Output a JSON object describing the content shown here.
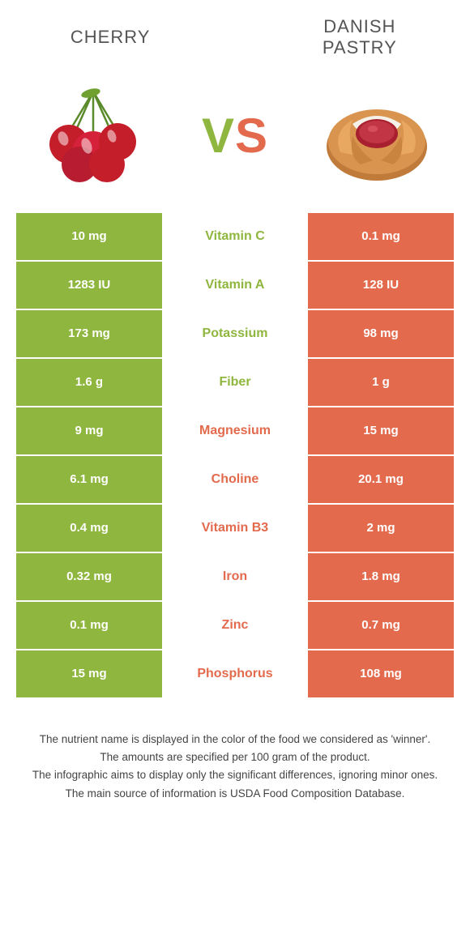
{
  "colors": {
    "left": "#8fb63e",
    "right": "#e36a4d",
    "background": "#ffffff",
    "text_dark": "#555555"
  },
  "typography": {
    "title_fontsize": 22,
    "vs_fontsize": 60,
    "cell_fontsize": 15,
    "nutrient_fontsize": 16,
    "footnote_fontsize": 13.5
  },
  "left_food": {
    "name": "CHERRY"
  },
  "right_food": {
    "name": "DANISH PASTRY"
  },
  "vs": {
    "v": "V",
    "s": "S"
  },
  "rows": [
    {
      "left": "10 mg",
      "nutrient": "Vitamin C",
      "right": "0.1 mg",
      "winner": "left"
    },
    {
      "left": "1283 IU",
      "nutrient": "Vitamin A",
      "right": "128 IU",
      "winner": "left"
    },
    {
      "left": "173 mg",
      "nutrient": "Potassium",
      "right": "98 mg",
      "winner": "left"
    },
    {
      "left": "1.6 g",
      "nutrient": "Fiber",
      "right": "1 g",
      "winner": "left"
    },
    {
      "left": "9 mg",
      "nutrient": "Magnesium",
      "right": "15 mg",
      "winner": "right"
    },
    {
      "left": "6.1 mg",
      "nutrient": "Choline",
      "right": "20.1 mg",
      "winner": "right"
    },
    {
      "left": "0.4 mg",
      "nutrient": "Vitamin B3",
      "right": "2 mg",
      "winner": "right"
    },
    {
      "left": "0.32 mg",
      "nutrient": "Iron",
      "right": "1.8 mg",
      "winner": "right"
    },
    {
      "left": "0.1 mg",
      "nutrient": "Zinc",
      "right": "0.7 mg",
      "winner": "right"
    },
    {
      "left": "15 mg",
      "nutrient": "Phosphorus",
      "right": "108 mg",
      "winner": "right"
    }
  ],
  "footnotes": [
    "The nutrient name is displayed in the color of the food we considered as 'winner'.",
    "The amounts are specified per 100 gram of the product.",
    "The infographic aims to display only the significant differences, ignoring minor ones.",
    "The main source of information is USDA Food Composition Database."
  ]
}
